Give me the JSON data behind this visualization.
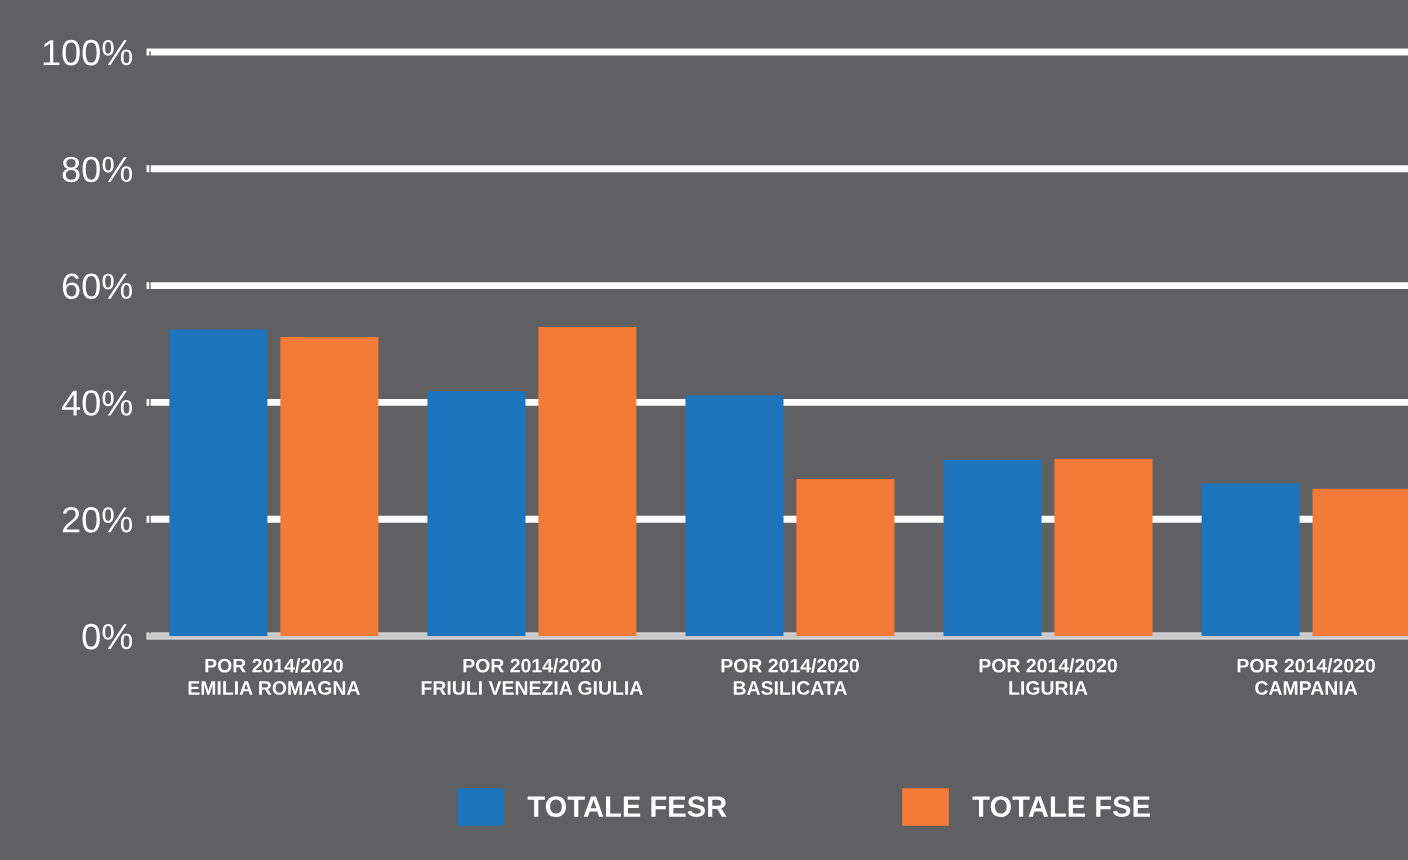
{
  "chart_data": {
    "type": "bar",
    "categories": [
      "POR 2014/2020\nEMILIA ROMAGNA",
      "POR 2014/2020\nFRIULI VENEZIA GIULIA",
      "POR 2014/2020\nBASILICATA",
      "POR 2014/2020\nLIGURIA",
      "POR 2014/2020\nCAMPANIA"
    ],
    "series": [
      {
        "name": "TOTALE FESR",
        "color": "#1c75bc",
        "values": [
          52.5,
          41.9,
          41.2,
          30.2,
          26.1
        ]
      },
      {
        "name": "TOTALE FSE",
        "color": "#f37b37",
        "values": [
          51.2,
          52.9,
          26.9,
          30.3,
          25.2
        ]
      }
    ],
    "ylim": [
      0,
      100
    ],
    "yticks": [
      {
        "value": 0,
        "label": "0%"
      },
      {
        "value": 20,
        "label": "20%"
      },
      {
        "value": 40,
        "label": "40%"
      },
      {
        "value": 60,
        "label": "60%"
      },
      {
        "value": 80,
        "label": "80%"
      },
      {
        "value": 100,
        "label": "100%"
      }
    ],
    "grid": "y",
    "legend": "bottom"
  }
}
